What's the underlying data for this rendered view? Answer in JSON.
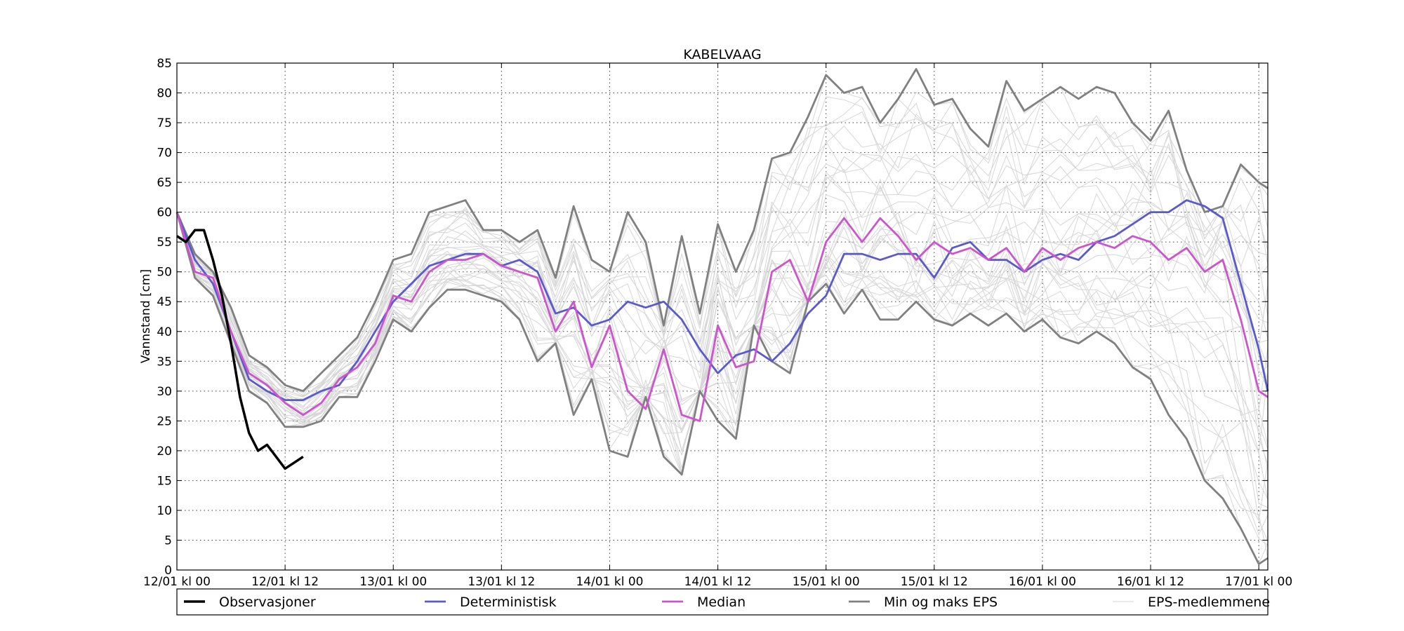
{
  "chart_data": {
    "type": "line",
    "title": "KABELVAAG",
    "xlabel": "",
    "ylabel": "Vannstand [cm]",
    "ylim": [
      0,
      85
    ],
    "xlim_hours": [
      0,
      121
    ],
    "grid": true,
    "legend_position": "bottom",
    "x_ticks": [
      {
        "hour": 0,
        "label": "12/01 kl 00"
      },
      {
        "hour": 12,
        "label": "12/01 kl 12"
      },
      {
        "hour": 24,
        "label": "13/01 kl 00"
      },
      {
        "hour": 36,
        "label": "13/01 kl 12"
      },
      {
        "hour": 48,
        "label": "14/01 kl 00"
      },
      {
        "hour": 60,
        "label": "14/01 kl 12"
      },
      {
        "hour": 72,
        "label": "15/01 kl 00"
      },
      {
        "hour": 84,
        "label": "15/01 kl 12"
      },
      {
        "hour": 96,
        "label": "16/01 kl 00"
      },
      {
        "hour": 108,
        "label": "16/01 kl 12"
      },
      {
        "hour": 120,
        "label": "17/01 kl 00"
      }
    ],
    "y_ticks": [
      0,
      5,
      10,
      15,
      20,
      25,
      30,
      35,
      40,
      45,
      50,
      55,
      60,
      65,
      70,
      75,
      80,
      85
    ],
    "series": [
      {
        "name": "Observasjoner",
        "color": "#000000",
        "width": 3.5,
        "x": [
          0,
          1,
          2,
          3,
          4,
          5,
          6,
          7,
          8,
          9,
          10,
          11,
          12,
          13,
          14
        ],
        "y": [
          56,
          55,
          57,
          57,
          52,
          46,
          38,
          29,
          23,
          20,
          21,
          19,
          17,
          18,
          19
        ]
      },
      {
        "name": "Deterministisk",
        "color": "#5a5acd",
        "width": 2.8,
        "x": [
          0,
          2,
          4,
          6,
          8,
          10,
          12,
          14,
          16,
          18,
          20,
          22,
          24,
          26,
          28,
          30,
          32,
          34,
          36,
          38,
          40,
          42,
          44,
          46,
          48,
          50,
          52,
          54,
          56,
          58,
          60,
          62,
          64,
          66,
          68,
          70,
          72,
          74,
          76,
          78,
          80,
          82,
          84,
          86,
          88,
          90,
          92,
          94,
          96,
          98,
          100,
          102,
          104,
          106,
          108,
          110,
          112,
          114,
          116,
          118,
          120,
          121
        ],
        "y": [
          60,
          52,
          48,
          40,
          32,
          30,
          28.5,
          28.5,
          30,
          31,
          35,
          40,
          45,
          48,
          51,
          52,
          53,
          53,
          51,
          52,
          50,
          43,
          44,
          41,
          42,
          45,
          44,
          45,
          42,
          37,
          33,
          36,
          37,
          35,
          38,
          43,
          46,
          53,
          53,
          52,
          53,
          53,
          49,
          54,
          55,
          52,
          52,
          50,
          52,
          53,
          52,
          55,
          56,
          58,
          60,
          60,
          62,
          61,
          59,
          48,
          37,
          30
        ]
      },
      {
        "name": "Median",
        "color": "#cc55cc",
        "width": 2.8,
        "x": [
          0,
          2,
          4,
          6,
          8,
          10,
          12,
          14,
          16,
          18,
          20,
          22,
          24,
          26,
          28,
          30,
          32,
          34,
          36,
          38,
          40,
          42,
          44,
          46,
          48,
          50,
          52,
          54,
          56,
          58,
          60,
          62,
          64,
          66,
          68,
          70,
          72,
          74,
          76,
          78,
          80,
          82,
          84,
          86,
          88,
          90,
          92,
          94,
          96,
          98,
          100,
          102,
          104,
          106,
          108,
          110,
          112,
          114,
          116,
          118,
          120,
          121
        ],
        "y": [
          60,
          50,
          49,
          40,
          33,
          31,
          28,
          26,
          28,
          32,
          34,
          38,
          46,
          45,
          50,
          52,
          52,
          53,
          51,
          50,
          49,
          40,
          45,
          34,
          41,
          30,
          27,
          37,
          26,
          25,
          41,
          34,
          35,
          50,
          52,
          45,
          55,
          59,
          55,
          59,
          56,
          52,
          55,
          53,
          54,
          52,
          54,
          50,
          54,
          52,
          54,
          55,
          54,
          56,
          55,
          52,
          54,
          50,
          52,
          42,
          30,
          29
        ]
      },
      {
        "name": "Min og maks EPS",
        "color": "#808080",
        "width": 2.8,
        "x": [
          0,
          2,
          4,
          6,
          8,
          10,
          12,
          14,
          16,
          18,
          20,
          22,
          24,
          26,
          28,
          30,
          32,
          34,
          36,
          38,
          40,
          42,
          44,
          46,
          48,
          50,
          52,
          54,
          56,
          58,
          60,
          62,
          64,
          66,
          68,
          70,
          72,
          74,
          76,
          78,
          80,
          82,
          84,
          86,
          88,
          90,
          92,
          94,
          96,
          98,
          100,
          102,
          104,
          106,
          108,
          110,
          112,
          114,
          116,
          118,
          120,
          121
        ],
        "y": [
          60,
          53,
          50,
          44,
          36,
          34,
          31,
          30,
          33,
          36,
          39,
          45,
          52,
          53,
          60,
          61,
          62,
          57,
          57,
          55,
          57,
          49,
          61,
          52,
          50,
          60,
          55,
          41,
          56,
          43,
          58,
          50,
          57,
          69,
          70,
          76,
          83,
          80,
          81,
          75,
          79,
          84,
          78,
          79,
          74,
          71,
          82,
          77,
          79,
          81,
          79,
          81,
          80,
          75,
          72,
          77,
          67,
          60,
          61,
          68,
          65,
          64
        ]
      },
      {
        "name": "Min og maks EPS",
        "color": "#808080",
        "width": 2.8,
        "x": [
          0,
          2,
          4,
          6,
          8,
          10,
          12,
          14,
          16,
          18,
          20,
          22,
          24,
          26,
          28,
          30,
          32,
          34,
          36,
          38,
          40,
          42,
          44,
          46,
          48,
          50,
          52,
          54,
          56,
          58,
          60,
          62,
          64,
          66,
          68,
          70,
          72,
          74,
          76,
          78,
          80,
          82,
          84,
          86,
          88,
          90,
          92,
          94,
          96,
          98,
          100,
          102,
          104,
          106,
          108,
          110,
          112,
          114,
          116,
          118,
          120,
          121
        ],
        "y": [
          60,
          49,
          46,
          38,
          30,
          28,
          24,
          24,
          25,
          29,
          29,
          35,
          42,
          40,
          44,
          47,
          47,
          46,
          45,
          42,
          35,
          38,
          26,
          32,
          20,
          19,
          29,
          19,
          16,
          30,
          25,
          22,
          41,
          35,
          33,
          45,
          48,
          43,
          47,
          42,
          42,
          45,
          42,
          41,
          43,
          41,
          43,
          40,
          42,
          39,
          38,
          40,
          38,
          34,
          32,
          26,
          22,
          15,
          12,
          7,
          1,
          2
        ]
      }
    ],
    "ensemble_members": {
      "name": "EPS-medlemmene",
      "color": "#d6d6d6",
      "width": 1,
      "count": 30,
      "x": [
        0,
        2,
        4,
        6,
        8,
        10,
        12,
        14,
        16,
        18,
        20,
        22,
        24,
        26,
        28,
        30,
        32,
        34,
        36,
        38,
        40,
        42,
        44,
        46,
        48,
        50,
        52,
        54,
        56,
        58,
        60,
        62,
        64,
        66,
        68,
        70,
        72,
        74,
        76,
        78,
        80,
        82,
        84,
        86,
        88,
        90,
        92,
        94,
        96,
        98,
        100,
        102,
        104,
        106,
        108,
        110,
        112,
        114,
        116,
        118,
        120,
        121
      ],
      "low": [
        60,
        49,
        46,
        38,
        30,
        28,
        24,
        24,
        25,
        29,
        29,
        35,
        42,
        40,
        44,
        47,
        47,
        46,
        45,
        42,
        35,
        38,
        26,
        32,
        20,
        19,
        29,
        19,
        16,
        30,
        25,
        22,
        41,
        35,
        33,
        45,
        48,
        43,
        47,
        42,
        42,
        45,
        42,
        41,
        43,
        41,
        43,
        40,
        42,
        39,
        38,
        40,
        38,
        34,
        32,
        26,
        22,
        15,
        12,
        7,
        1,
        2
      ],
      "high": [
        60,
        53,
        50,
        44,
        36,
        34,
        31,
        30,
        33,
        36,
        39,
        45,
        52,
        53,
        60,
        61,
        62,
        57,
        57,
        55,
        57,
        49,
        61,
        52,
        50,
        60,
        55,
        41,
        56,
        43,
        58,
        50,
        57,
        69,
        70,
        76,
        83,
        80,
        81,
        75,
        79,
        84,
        78,
        79,
        74,
        71,
        82,
        77,
        79,
        81,
        79,
        81,
        80,
        75,
        72,
        77,
        67,
        60,
        61,
        68,
        65,
        64
      ],
      "center": [
        60,
        50,
        49,
        40,
        33,
        31,
        28,
        26,
        28,
        32,
        34,
        38,
        46,
        45,
        50,
        52,
        52,
        53,
        51,
        50,
        49,
        40,
        45,
        34,
        41,
        30,
        27,
        37,
        26,
        25,
        41,
        34,
        35,
        50,
        52,
        45,
        55,
        59,
        55,
        59,
        56,
        52,
        55,
        53,
        54,
        52,
        54,
        50,
        54,
        52,
        54,
        55,
        54,
        56,
        55,
        52,
        54,
        50,
        52,
        42,
        30,
        29
      ]
    },
    "legend": [
      {
        "label": "Observasjoner",
        "color": "#000000",
        "width": 3.5
      },
      {
        "label": "Deterministisk",
        "color": "#5a5acd",
        "width": 2.8
      },
      {
        "label": "Median",
        "color": "#cc55cc",
        "width": 2.8
      },
      {
        "label": "Min og maks EPS",
        "color": "#808080",
        "width": 2.8
      },
      {
        "label": "EPS-medlemmene",
        "color": "#d6d6d6",
        "width": 1
      }
    ]
  }
}
